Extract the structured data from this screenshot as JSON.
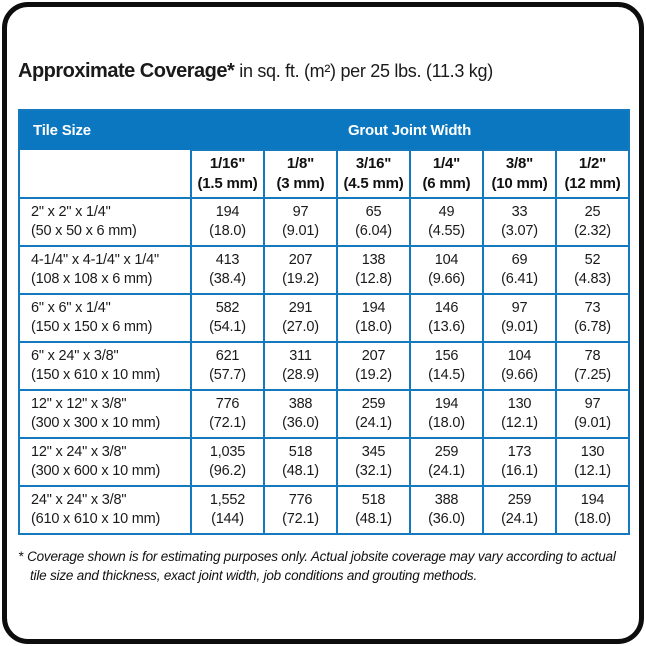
{
  "page": {
    "title_bold": "Approximate Coverage*",
    "title_rest": "in sq. ft. (m²) per 25 lbs. (11.3 kg)",
    "footnote_marker": "*",
    "footnote_text": "Coverage shown is for estimating purposes only. Actual jobsite coverage may vary according to actual tile size and thickness, exact joint width, job conditions and grouting methods."
  },
  "colors": {
    "header_blue": "#0b77c0",
    "grid_blue": "#1579bf",
    "frame_black": "#0d0d0d",
    "header_text": "#ffffff",
    "body_text": "#1a1a1a"
  },
  "chart_data": {
    "type": "table",
    "title": "Approximate Coverage* in sq. ft. (m²) per 25 lbs. (11.3 kg)",
    "corner_header": "Tile Size",
    "group_header": "Grout Joint Width",
    "columns": [
      {
        "width": "1/16\"",
        "metric": "(1.5 mm)"
      },
      {
        "width": "1/8\"",
        "metric": "(3 mm)"
      },
      {
        "width": "3/16\"",
        "metric": "(4.5 mm)"
      },
      {
        "width": "1/4\"",
        "metric": "(6 mm)"
      },
      {
        "width": "3/8\"",
        "metric": "(10 mm)"
      },
      {
        "width": "1/2\"",
        "metric": "(12 mm)"
      }
    ],
    "rows": [
      {
        "tile_size": "2\" x 2\" x 1/4\"",
        "tile_metric": "(50 x 50 x 6 mm)",
        "cells": [
          {
            "sqft": "194",
            "m2": "(18.0)"
          },
          {
            "sqft": "97",
            "m2": "(9.01)"
          },
          {
            "sqft": "65",
            "m2": "(6.04)"
          },
          {
            "sqft": "49",
            "m2": "(4.55)"
          },
          {
            "sqft": "33",
            "m2": "(3.07)"
          },
          {
            "sqft": "25",
            "m2": "(2.32)"
          }
        ]
      },
      {
        "tile_size": "4-1/4\" x 4-1/4\" x 1/4\"",
        "tile_metric": "(108 x 108 x 6 mm)",
        "cells": [
          {
            "sqft": "413",
            "m2": "(38.4)"
          },
          {
            "sqft": "207",
            "m2": "(19.2)"
          },
          {
            "sqft": "138",
            "m2": "(12.8)"
          },
          {
            "sqft": "104",
            "m2": "(9.66)"
          },
          {
            "sqft": "69",
            "m2": "(6.41)"
          },
          {
            "sqft": "52",
            "m2": "(4.83)"
          }
        ]
      },
      {
        "tile_size": "6\" x 6\" x 1/4\"",
        "tile_metric": "(150 x 150 x 6 mm)",
        "cells": [
          {
            "sqft": "582",
            "m2": "(54.1)"
          },
          {
            "sqft": "291",
            "m2": "(27.0)"
          },
          {
            "sqft": "194",
            "m2": "(18.0)"
          },
          {
            "sqft": "146",
            "m2": "(13.6)"
          },
          {
            "sqft": "97",
            "m2": "(9.01)"
          },
          {
            "sqft": "73",
            "m2": "(6.78)"
          }
        ]
      },
      {
        "tile_size": "6\" x 24\" x 3/8\"",
        "tile_metric": "(150 x 610 x 10 mm)",
        "cells": [
          {
            "sqft": "621",
            "m2": "(57.7)"
          },
          {
            "sqft": "311",
            "m2": "(28.9)"
          },
          {
            "sqft": "207",
            "m2": "(19.2)"
          },
          {
            "sqft": "156",
            "m2": "(14.5)"
          },
          {
            "sqft": "104",
            "m2": "(9.66)"
          },
          {
            "sqft": "78",
            "m2": "(7.25)"
          }
        ]
      },
      {
        "tile_size": "12\" x 12\" x 3/8\"",
        "tile_metric": "(300 x 300 x 10 mm)",
        "cells": [
          {
            "sqft": "776",
            "m2": "(72.1)"
          },
          {
            "sqft": "388",
            "m2": "(36.0)"
          },
          {
            "sqft": "259",
            "m2": "(24.1)"
          },
          {
            "sqft": "194",
            "m2": "(18.0)"
          },
          {
            "sqft": "130",
            "m2": "(12.1)"
          },
          {
            "sqft": "97",
            "m2": "(9.01)"
          }
        ]
      },
      {
        "tile_size": "12\" x 24\" x 3/8\"",
        "tile_metric": "(300 x 600 x 10 mm)",
        "cells": [
          {
            "sqft": "1,035",
            "m2": "(96.2)"
          },
          {
            "sqft": "518",
            "m2": "(48.1)"
          },
          {
            "sqft": "345",
            "m2": "(32.1)"
          },
          {
            "sqft": "259",
            "m2": "(24.1)"
          },
          {
            "sqft": "173",
            "m2": "(16.1)"
          },
          {
            "sqft": "130",
            "m2": "(12.1)"
          }
        ]
      },
      {
        "tile_size": "24\" x 24\" x 3/8\"",
        "tile_metric": "(610 x 610 x 10 mm)",
        "cells": [
          {
            "sqft": "1,552",
            "m2": "(144)"
          },
          {
            "sqft": "776",
            "m2": "(72.1)"
          },
          {
            "sqft": "518",
            "m2": "(48.1)"
          },
          {
            "sqft": "388",
            "m2": "(36.0)"
          },
          {
            "sqft": "259",
            "m2": "(24.1)"
          },
          {
            "sqft": "194",
            "m2": "(18.0)"
          }
        ]
      }
    ]
  }
}
